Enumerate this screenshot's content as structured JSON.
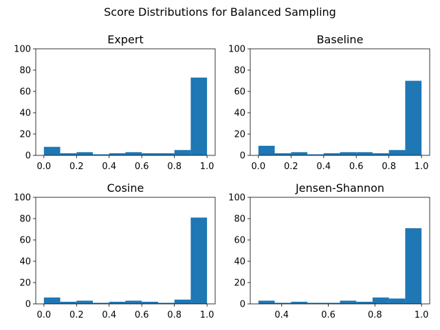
{
  "figure": {
    "title": "Score Distributions for Balanced Sampling"
  },
  "chart_data": [
    {
      "type": "bar",
      "title": "Expert",
      "bin_edges": [
        0.0,
        0.1,
        0.2,
        0.3,
        0.4,
        0.5,
        0.6,
        0.7,
        0.8,
        0.9,
        1.0
      ],
      "values": [
        8,
        2,
        3,
        1,
        2,
        3,
        2,
        2,
        5,
        73
      ],
      "xlim": [
        -0.05,
        1.05
      ],
      "ylim": [
        0,
        100
      ],
      "xticks": [
        "0.0",
        "0.2",
        "0.4",
        "0.6",
        "0.8",
        "1.0"
      ],
      "yticks": [
        "0",
        "20",
        "40",
        "60",
        "80",
        "100"
      ],
      "color": "#1f77b4"
    },
    {
      "type": "bar",
      "title": "Baseline",
      "bin_edges": [
        0.0,
        0.1,
        0.2,
        0.3,
        0.4,
        0.5,
        0.6,
        0.7,
        0.8,
        0.9,
        1.0
      ],
      "values": [
        9,
        2,
        3,
        1,
        2,
        3,
        3,
        2,
        5,
        70
      ],
      "xlim": [
        -0.05,
        1.05
      ],
      "ylim": [
        0,
        100
      ],
      "xticks": [
        "0.0",
        "0.2",
        "0.4",
        "0.6",
        "0.8",
        "1.0"
      ],
      "yticks": [
        "0",
        "20",
        "40",
        "60",
        "80",
        "100"
      ],
      "color": "#1f77b4"
    },
    {
      "type": "bar",
      "title": "Cosine",
      "bin_edges": [
        0.0,
        0.1,
        0.2,
        0.3,
        0.4,
        0.5,
        0.6,
        0.7,
        0.8,
        0.9,
        1.0
      ],
      "values": [
        6,
        2,
        3,
        1,
        2,
        3,
        2,
        1,
        4,
        81
      ],
      "xlim": [
        -0.05,
        1.05
      ],
      "ylim": [
        0,
        100
      ],
      "xticks": [
        "0.0",
        "0.2",
        "0.4",
        "0.6",
        "0.8",
        "1.0"
      ],
      "yticks": [
        "0",
        "20",
        "40",
        "60",
        "80",
        "100"
      ],
      "color": "#1f77b4"
    },
    {
      "type": "bar",
      "title": "Jensen-Shannon",
      "bin_edges": [
        0.3,
        0.37,
        0.44,
        0.51,
        0.58,
        0.65,
        0.72,
        0.79,
        0.86,
        0.93,
        1.0
      ],
      "values": [
        3,
        1,
        2,
        1,
        1,
        3,
        2,
        6,
        5,
        71
      ],
      "xlim": [
        0.265,
        1.035
      ],
      "ylim": [
        0,
        100
      ],
      "xticks": [
        "0.4",
        "0.6",
        "0.8",
        "1.0"
      ],
      "yticks": [
        "0",
        "20",
        "40",
        "60",
        "80",
        "100"
      ],
      "color": "#1f77b4"
    }
  ]
}
